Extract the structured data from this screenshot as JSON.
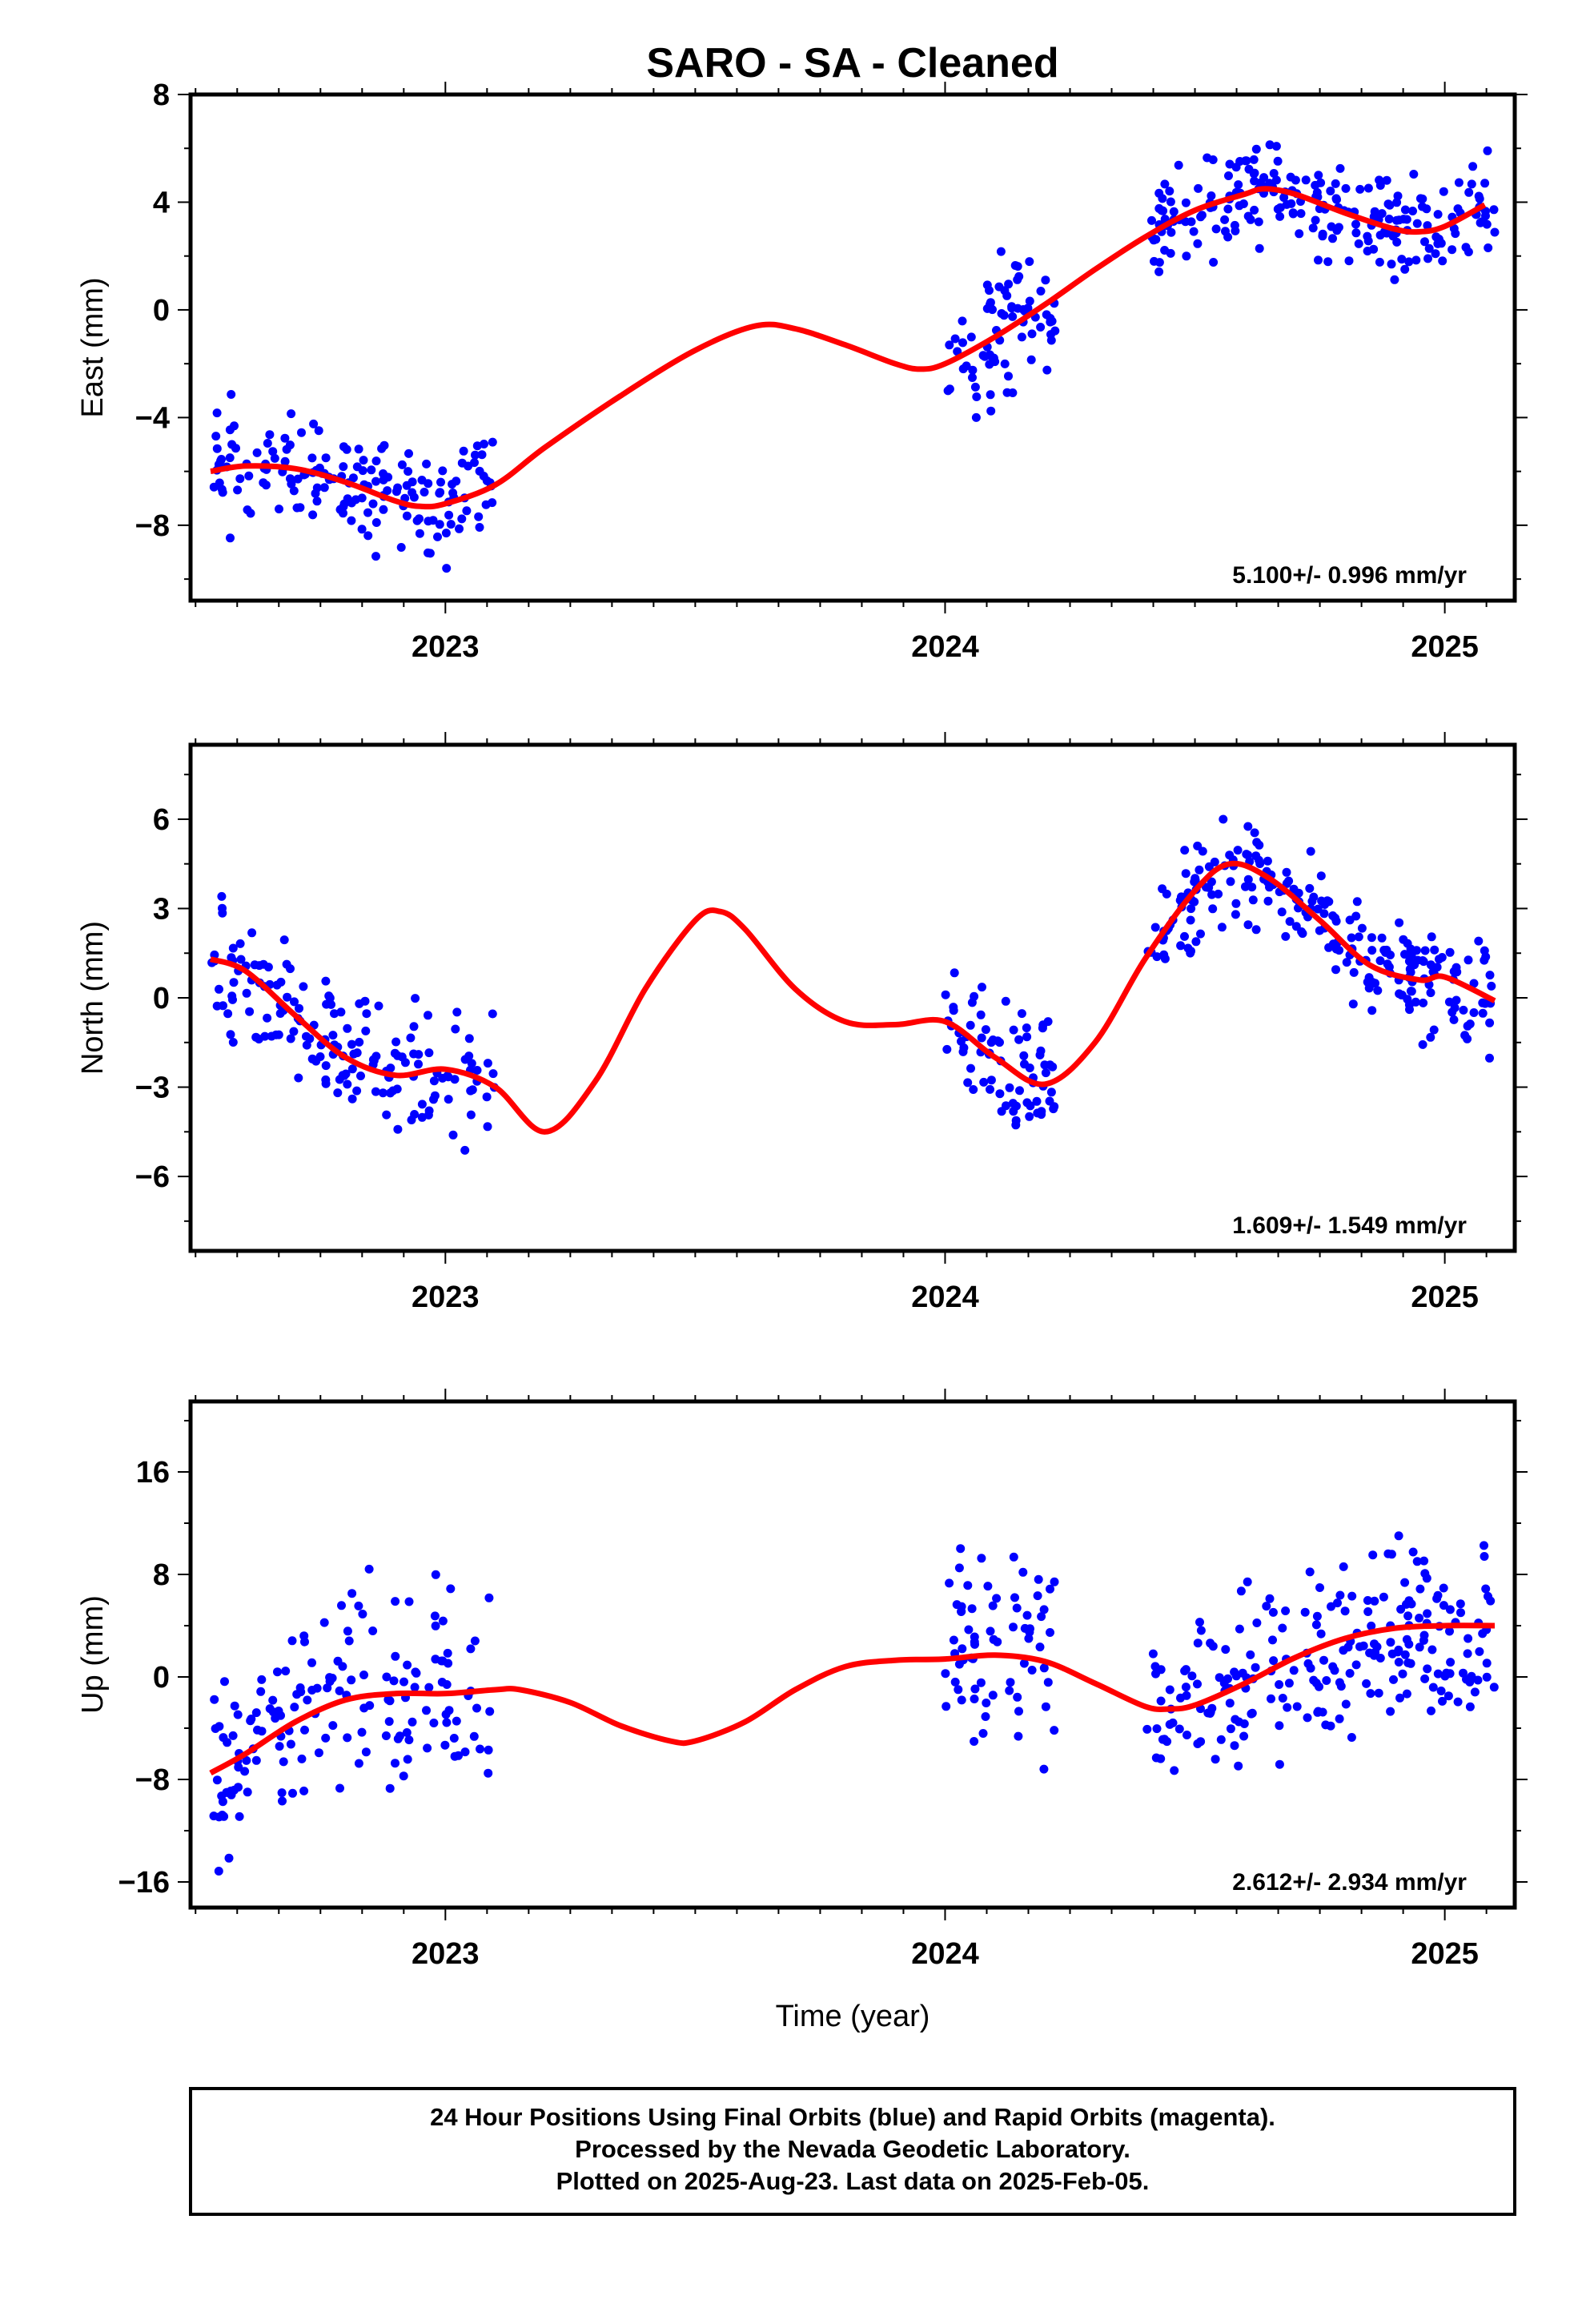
{
  "title": "SARO  - SA - Cleaned",
  "footer": {
    "line1": "24 Hour Positions Using Final Orbits (blue) and Rapid Orbits (magenta).",
    "line2": "Processed by the Nevada Geodetic Laboratory.",
    "line3": "Plotted on 2025-Aug-23. Last data on 2025-Feb-05."
  },
  "colors": {
    "points": "#0000ff",
    "fit": "#ff0000",
    "frame": "#000000"
  },
  "chart_data": [
    {
      "type": "scatter",
      "ylabel": "East (mm)",
      "xlabel": "",
      "xlim": [
        2022.49,
        2025.14
      ],
      "ylim": [
        -10.8,
        8.0
      ],
      "yticks": [
        -8,
        -4,
        0,
        4,
        8
      ],
      "xticks": [
        2023,
        2024,
        2025
      ],
      "rate_text": "5.100+/- 0.996 mm/yr",
      "fit_curve": {
        "x": [
          2022.53,
          2022.6,
          2022.7,
          2022.8,
          2022.9,
          2022.95,
          2023.0,
          2023.1,
          2023.2,
          2023.35,
          2023.5,
          2023.62,
          2023.7,
          2023.8,
          2023.9,
          2023.95,
          2024.0,
          2024.1,
          2024.2,
          2024.3,
          2024.4,
          2024.5,
          2024.6,
          2024.64,
          2024.7,
          2024.8,
          2024.9,
          2024.95,
          2025.0,
          2025.08
        ],
        "y": [
          -6.0,
          -5.8,
          -5.9,
          -6.4,
          -7.1,
          -7.3,
          -7.2,
          -6.5,
          -5.1,
          -3.2,
          -1.5,
          -0.6,
          -0.7,
          -1.3,
          -2.0,
          -2.2,
          -2.0,
          -1.0,
          0.2,
          1.5,
          2.7,
          3.7,
          4.3,
          4.5,
          4.3,
          3.6,
          3.0,
          2.9,
          3.1,
          3.9
        ]
      },
      "points": {
        "seed": 11,
        "segments": [
          {
            "x0": 2022.53,
            "x1": 2023.1,
            "n": 170,
            "spread": 1.2
          },
          {
            "x0": 2024.0,
            "x1": 2024.22,
            "n": 75,
            "spread": 1.5
          },
          {
            "x0": 2024.4,
            "x1": 2025.1,
            "n": 230,
            "spread": 1.2
          }
        ]
      }
    },
    {
      "type": "scatter",
      "ylabel": "North (mm)",
      "xlabel": "",
      "xlim": [
        2022.49,
        2025.14
      ],
      "ylim": [
        -8.5,
        8.5
      ],
      "yticks": [
        -6,
        -3,
        0,
        3,
        6
      ],
      "xticks": [
        2023,
        2024,
        2025
      ],
      "rate_text": "1.609+/- 1.549 mm/yr",
      "fit_curve": {
        "x": [
          2022.53,
          2022.6,
          2022.7,
          2022.8,
          2022.9,
          2023.0,
          2023.1,
          2023.2,
          2023.3,
          2023.4,
          2023.5,
          2023.55,
          2023.6,
          2023.7,
          2023.8,
          2023.9,
          2024.0,
          2024.1,
          2024.2,
          2024.3,
          2024.4,
          2024.5,
          2024.57,
          2024.65,
          2024.75,
          2024.85,
          2024.95,
          2025.0,
          2025.1
        ],
        "y": [
          1.3,
          0.9,
          -0.6,
          -2.0,
          -2.6,
          -2.4,
          -3.0,
          -4.5,
          -2.8,
          0.3,
          2.6,
          2.9,
          2.3,
          0.3,
          -0.8,
          -0.9,
          -0.8,
          -2.0,
          -2.9,
          -1.5,
          1.3,
          3.6,
          4.5,
          4.0,
          2.6,
          1.1,
          0.6,
          0.7,
          -0.1
        ]
      },
      "points": {
        "seed": 23,
        "segments": [
          {
            "x0": 2022.53,
            "x1": 2023.1,
            "n": 165,
            "spread": 1.4
          },
          {
            "x0": 2024.0,
            "x1": 2024.22,
            "n": 75,
            "spread": 1.2
          },
          {
            "x0": 2024.4,
            "x1": 2025.1,
            "n": 230,
            "spread": 1.1
          }
        ]
      }
    },
    {
      "type": "scatter",
      "ylabel": "Up (mm)",
      "xlabel": "Time (year)",
      "xlim": [
        2022.49,
        2025.14
      ],
      "ylim": [
        -18.0,
        21.5
      ],
      "yticks": [
        -16,
        -8,
        0,
        8,
        16
      ],
      "xticks": [
        2023,
        2024,
        2025
      ],
      "rate_text": "2.612+/- 2.934 mm/yr",
      "fit_curve": {
        "x": [
          2022.53,
          2022.6,
          2022.7,
          2022.8,
          2022.9,
          2023.0,
          2023.1,
          2023.15,
          2023.25,
          2023.35,
          2023.45,
          2023.5,
          2023.6,
          2023.7,
          2023.8,
          2023.9,
          2024.0,
          2024.1,
          2024.2,
          2024.3,
          2024.4,
          2024.45,
          2024.5,
          2024.6,
          2024.7,
          2024.8,
          2024.9,
          2025.0,
          2025.1
        ],
        "y": [
          -7.5,
          -6.0,
          -3.5,
          -1.8,
          -1.3,
          -1.3,
          -1.0,
          -1.0,
          -2.0,
          -3.8,
          -5.0,
          -5.0,
          -3.5,
          -1.0,
          0.8,
          1.3,
          1.4,
          1.7,
          1.2,
          -0.5,
          -2.3,
          -2.5,
          -2.2,
          -0.5,
          1.5,
          3.0,
          3.8,
          4.0,
          4.0
        ]
      },
      "points": {
        "seed": 37,
        "segments": [
          {
            "x0": 2022.53,
            "x1": 2023.1,
            "n": 160,
            "spread": 4.5
          },
          {
            "x0": 2024.0,
            "x1": 2024.22,
            "n": 70,
            "spread": 5.0
          },
          {
            "x0": 2024.4,
            "x1": 2025.1,
            "n": 225,
            "spread": 4.3
          }
        ]
      }
    }
  ]
}
